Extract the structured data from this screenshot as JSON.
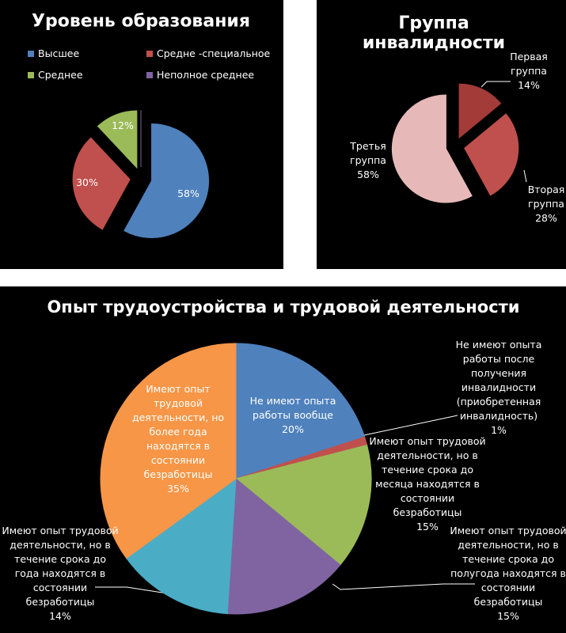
{
  "chart_data": [
    {
      "type": "pie",
      "title": "Уровень образования",
      "categories": [
        "Высшее",
        "Средне -специальное",
        "Среднее",
        "Неполное среднее"
      ],
      "values": [
        58,
        30,
        12,
        0
      ],
      "value_labels": [
        "58%",
        "30%",
        "12%",
        null
      ],
      "colors": [
        "#4f81bd",
        "#c0504d",
        "#9bbb59",
        "#8064a2"
      ],
      "legend": "top"
    },
    {
      "type": "pie",
      "title": "Группа инвалидности",
      "categories": [
        "Первая группа",
        "Вторая группа",
        "Третья группа"
      ],
      "values": [
        14,
        28,
        58
      ],
      "value_labels": [
        "14%",
        "28%",
        "58%"
      ],
      "colors": [
        "#a33b39",
        "#c0504d",
        "#e6b9b8"
      ]
    },
    {
      "type": "pie",
      "title": "Опыт трудоустройства и трудовой деятельности",
      "categories": [
        "Не имеют опыта работы вообще",
        "Не имеют опыта работы после получения инвалидности (приобретенная инвалидность)",
        "Имеют опыт трудовой деятельности, но в течение срока до месяца находятся в состоянии безработицы",
        "Имеют опыт трудовой деятельности, но в течение срока до полугода находятся в состоянии безработицы",
        "Имеют опыт трудовой деятельности, но в течение срока до года находятся в состоянии безработицы",
        "Имеют опыт трудовой деятельности, но более года находятся в состоянии безработицы"
      ],
      "values": [
        20,
        1,
        15,
        15,
        14,
        35
      ],
      "value_labels": [
        "20%",
        "1%",
        "15%",
        "15%",
        "14%",
        "35%"
      ],
      "colors": [
        "#4f81bd",
        "#c0504d",
        "#9bbb59",
        "#8064a2",
        "#4bacc6",
        "#f79646"
      ]
    }
  ]
}
